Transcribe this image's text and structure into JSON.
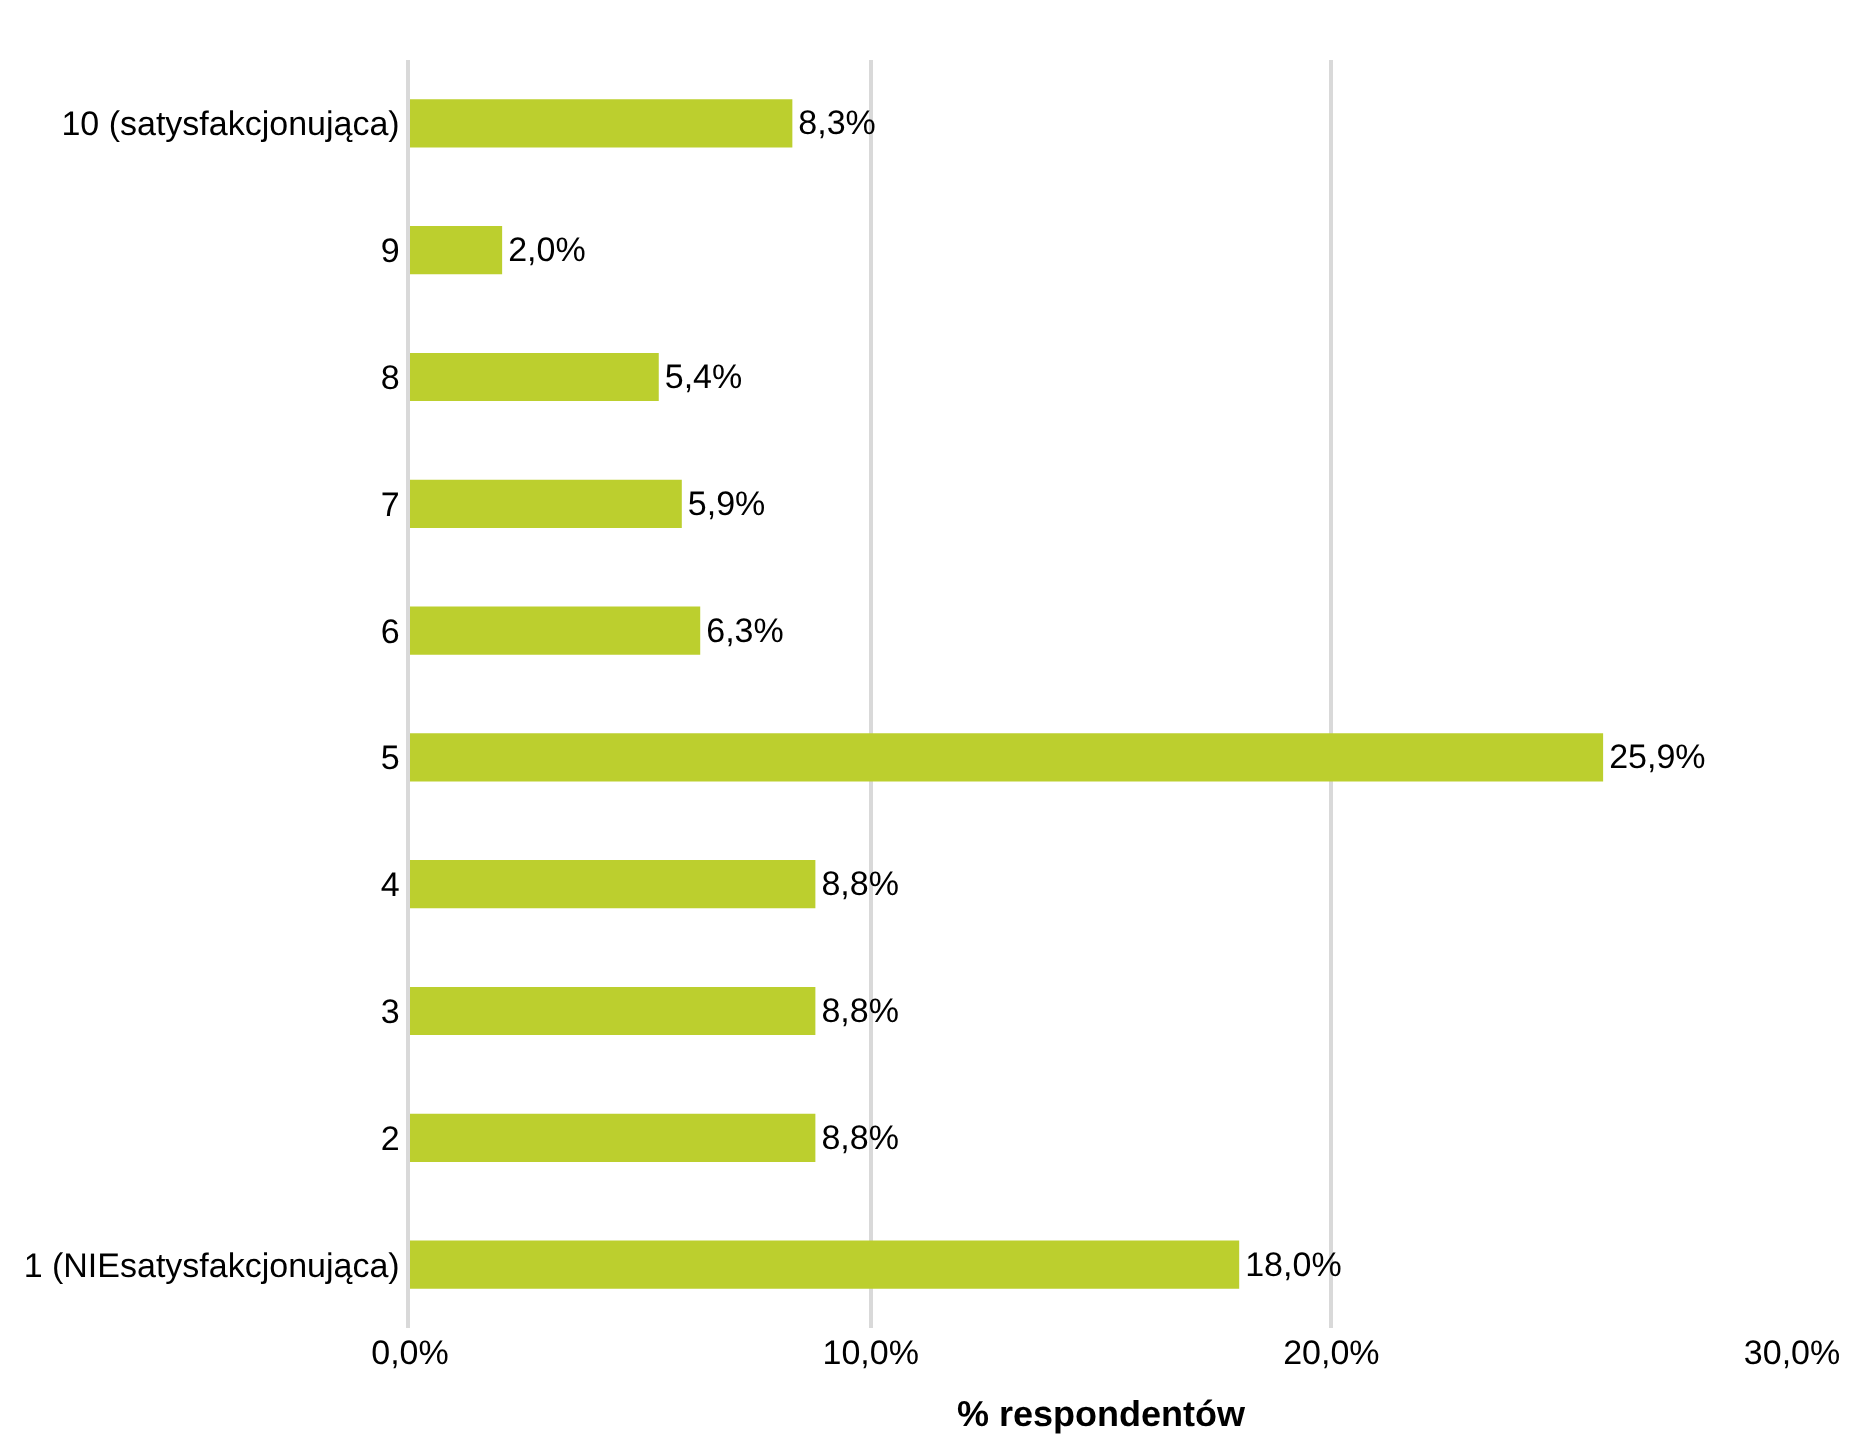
{
  "chart_data": {
    "type": "bar",
    "orientation": "horizontal",
    "xlabel": "% respondentów",
    "categories": [
      "10 (satysfakcjonująca)",
      "9",
      "8",
      "7",
      "6",
      "5",
      "4",
      "3",
      "2",
      "1 (NIEsatysfakcjonująca)"
    ],
    "values": [
      8.3,
      2.0,
      5.4,
      5.9,
      6.3,
      25.9,
      8.8,
      8.8,
      8.8,
      18.0
    ],
    "value_labels": [
      "8,3%",
      "2,0%",
      "5,4%",
      "5,9%",
      "6,3%",
      "25,9%",
      "8,8%",
      "8,8%",
      "8,8%",
      "18,0%"
    ],
    "color": "#bccf2e",
    "xlim": [
      0,
      30
    ],
    "xticks": [
      {
        "value": 0,
        "label": "0,0%"
      },
      {
        "value": 10,
        "label": "10,0%"
      },
      {
        "value": 20,
        "label": "20,0%"
      },
      {
        "value": 30,
        "label": "30,0%"
      }
    ],
    "grid": "x",
    "legend": false
  }
}
